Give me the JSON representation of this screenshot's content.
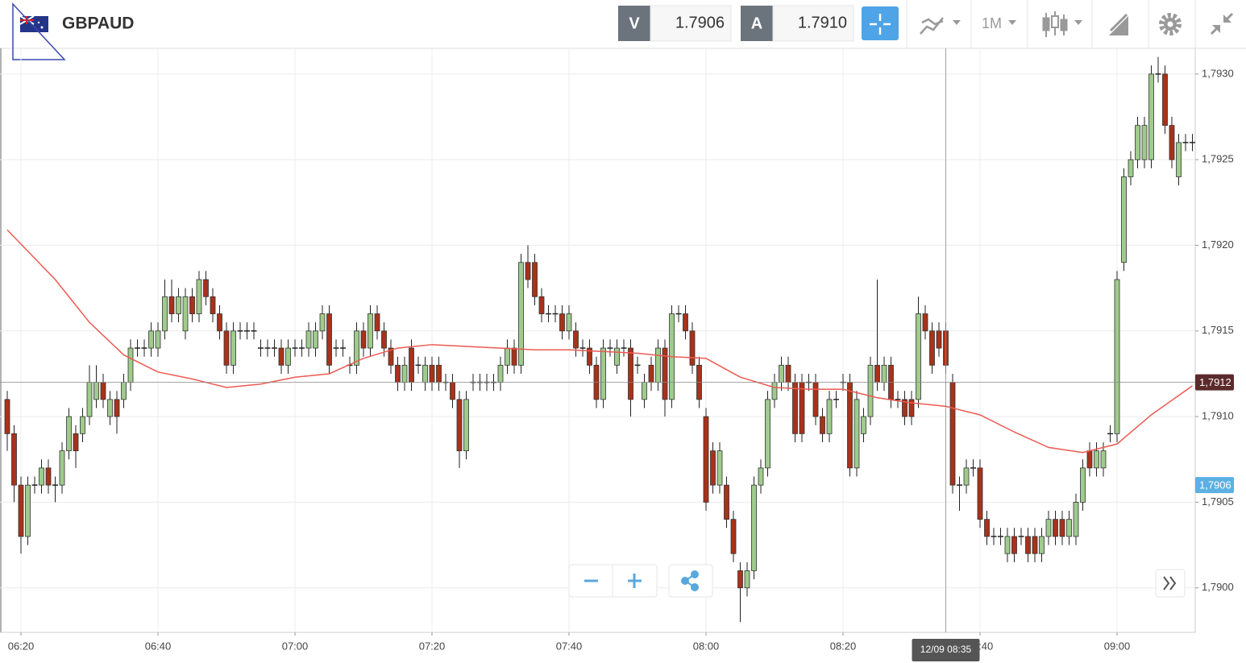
{
  "header": {
    "symbol": "GBPAUD",
    "bid_label": "V",
    "bid": "1.7906",
    "ask_label": "A",
    "ask": "1.7910",
    "timeframe": "1M"
  },
  "chart_data": {
    "type": "candlestick",
    "x": [
      "06:18",
      "06:19",
      "06:20",
      "06:21",
      "06:22",
      "06:23",
      "06:24",
      "06:25",
      "06:26",
      "06:27",
      "06:28",
      "06:29",
      "06:30",
      "06:31",
      "06:32",
      "06:33",
      "06:34",
      "06:35",
      "06:36",
      "06:37",
      "06:38",
      "06:39",
      "06:40",
      "06:41",
      "06:42",
      "06:43",
      "06:44",
      "06:45",
      "06:46",
      "06:47",
      "06:48",
      "06:49",
      "06:50",
      "06:51",
      "06:52",
      "06:53",
      "06:54",
      "06:55",
      "06:56",
      "06:57",
      "06:58",
      "06:59",
      "07:00",
      "07:01",
      "07:02",
      "07:03",
      "07:04",
      "07:05",
      "07:06",
      "07:07",
      "07:08",
      "07:09",
      "07:10",
      "07:11",
      "07:12",
      "07:13",
      "07:14",
      "07:15",
      "07:16",
      "07:17",
      "07:18",
      "07:19",
      "07:20",
      "07:21",
      "07:22",
      "07:23",
      "07:24",
      "07:25",
      "07:26",
      "07:27",
      "07:28",
      "07:29",
      "07:30",
      "07:31",
      "07:32",
      "07:33",
      "07:34",
      "07:35",
      "07:36",
      "07:37",
      "07:38",
      "07:39",
      "07:40",
      "07:41",
      "07:42",
      "07:43",
      "07:44",
      "07:45",
      "07:46",
      "07:47",
      "07:48",
      "07:49",
      "07:50",
      "07:51",
      "07:52",
      "07:53",
      "07:54",
      "07:55",
      "07:56",
      "07:57",
      "07:58",
      "07:59",
      "08:00",
      "08:01",
      "08:02",
      "08:03",
      "08:04",
      "08:05",
      "08:06",
      "08:07",
      "08:08",
      "08:09",
      "08:10",
      "08:11",
      "08:12",
      "08:13",
      "08:14",
      "08:15",
      "08:16",
      "08:17",
      "08:18",
      "08:19",
      "08:20",
      "08:21",
      "08:22",
      "08:23",
      "08:24",
      "08:25",
      "08:26",
      "08:27",
      "08:28",
      "08:29",
      "08:30",
      "08:31",
      "08:32",
      "08:33",
      "08:34",
      "08:35",
      "08:36",
      "08:37",
      "08:38",
      "08:39",
      "08:40",
      "08:41",
      "08:42",
      "08:43",
      "08:44",
      "08:45",
      "08:46",
      "08:47",
      "08:48",
      "08:49",
      "08:50",
      "08:51",
      "08:52",
      "08:53",
      "08:54",
      "08:55",
      "08:56",
      "08:57",
      "08:58",
      "08:59",
      "09:00",
      "09:01",
      "09:02",
      "09:03",
      "09:04",
      "09:05",
      "09:06",
      "09:07",
      "09:08",
      "09:09",
      "09:10",
      "09:11"
    ],
    "open": [
      1.7911,
      1.7909,
      1.7906,
      1.7903,
      1.7906,
      1.7906,
      1.7907,
      1.7906,
      1.7906,
      1.7908,
      1.7909,
      1.7909,
      1.791,
      1.7911,
      1.7912,
      1.791,
      1.7911,
      1.7911,
      1.7912,
      1.7914,
      1.7914,
      1.7914,
      1.7914,
      1.7915,
      1.7917,
      1.7916,
      1.7915,
      1.7917,
      1.7916,
      1.7918,
      1.7917,
      1.7916,
      1.7915,
      1.7913,
      1.7915,
      1.7915,
      1.7915,
      1.7914,
      1.7914,
      1.7914,
      1.7914,
      1.7913,
      1.7914,
      1.7914,
      1.7914,
      1.7914,
      1.7915,
      1.7916,
      1.7914,
      1.7914,
      1.7913,
      1.7913,
      1.7915,
      1.7914,
      1.7916,
      1.7915,
      1.7914,
      1.7913,
      1.7912,
      1.7914,
      1.7913,
      1.7912,
      1.7913,
      1.7913,
      1.7912,
      1.7912,
      1.7911,
      1.7908,
      1.7912,
      1.7912,
      1.7912,
      1.7912,
      1.7912,
      1.7913,
      1.7914,
      1.7913,
      1.7919,
      1.7919,
      1.7917,
      1.7916,
      1.7916,
      1.7916,
      1.7915,
      1.7915,
      1.7914,
      1.7914,
      1.7913,
      1.7911,
      1.7914,
      1.7913,
      1.7914,
      1.7914,
      1.7913,
      1.7911,
      1.7913,
      1.7912,
      1.7914,
      1.7911,
      1.7916,
      1.7916,
      1.7915,
      1.7913,
      1.791,
      1.7908,
      1.7906,
      1.7906,
      1.7904,
      1.7901,
      1.79,
      1.7901,
      1.7906,
      1.7907,
      1.7911,
      1.7912,
      1.7913,
      1.7912,
      1.7912,
      1.7912,
      1.7912,
      1.791,
      1.7909,
      1.7911,
      1.7912,
      1.7912,
      1.7907,
      1.7909,
      1.791,
      1.7913,
      1.7912,
      1.7913,
      1.7911,
      1.7911,
      1.7911,
      1.7911,
      1.7916,
      1.7915,
      1.7915,
      1.7915,
      1.7912,
      1.7906,
      1.7906,
      1.7907,
      1.7907,
      1.7904,
      1.7903,
      1.7903,
      1.7902,
      1.7903,
      1.7903,
      1.7903,
      1.7903,
      1.7902,
      1.7903,
      1.7904,
      1.7904,
      1.7903,
      1.7903,
      1.7905,
      1.7908,
      1.7907,
      1.7907,
      1.7909,
      1.7909,
      1.7919,
      1.7924,
      1.7925,
      1.7925,
      1.7925,
      1.793,
      1.793,
      1.7927,
      1.7924,
      1.7926,
      1.7926
    ],
    "high": [
      1.79115,
      1.79095,
      1.79065,
      1.79065,
      1.79065,
      1.79075,
      1.79075,
      1.79065,
      1.79085,
      1.79105,
      1.79095,
      1.79105,
      1.7913,
      1.7913,
      1.79125,
      1.79115,
      1.79115,
      1.79125,
      1.79145,
      1.79145,
      1.79145,
      1.79155,
      1.79155,
      1.7918,
      1.7918,
      1.79175,
      1.79175,
      1.79175,
      1.79185,
      1.79185,
      1.79175,
      1.79165,
      1.79155,
      1.79155,
      1.79155,
      1.79155,
      1.79155,
      1.79145,
      1.79145,
      1.79145,
      1.79145,
      1.79145,
      1.79145,
      1.79145,
      1.79155,
      1.79155,
      1.79165,
      1.79165,
      1.79145,
      1.79145,
      1.79135,
      1.79155,
      1.79155,
      1.79165,
      1.79165,
      1.79155,
      1.79145,
      1.79135,
      1.79135,
      1.79145,
      1.79135,
      1.79135,
      1.79135,
      1.79135,
      1.79125,
      1.79125,
      1.79115,
      1.79115,
      1.79125,
      1.79125,
      1.79125,
      1.79125,
      1.79135,
      1.79145,
      1.79145,
      1.79195,
      1.792,
      1.79195,
      1.79175,
      1.79165,
      1.79165,
      1.79165,
      1.79165,
      1.79155,
      1.79145,
      1.79145,
      1.79135,
      1.79145,
      1.79145,
      1.79145,
      1.79145,
      1.79145,
      1.79135,
      1.79125,
      1.79135,
      1.79145,
      1.79145,
      1.79165,
      1.79165,
      1.79165,
      1.79155,
      1.79135,
      1.79105,
      1.79085,
      1.79085,
      1.79065,
      1.79045,
      1.79015,
      1.79015,
      1.79065,
      1.79075,
      1.79115,
      1.79125,
      1.79135,
      1.79135,
      1.79125,
      1.79125,
      1.79125,
      1.79125,
      1.79105,
      1.79115,
      1.79115,
      1.79125,
      1.79125,
      1.79115,
      1.79105,
      1.79135,
      1.7918,
      1.79135,
      1.79135,
      1.79115,
      1.79115,
      1.79115,
      1.7917,
      1.79165,
      1.79155,
      1.79155,
      1.79155,
      1.79125,
      1.79065,
      1.79075,
      1.79075,
      1.79075,
      1.79045,
      1.79035,
      1.79035,
      1.79035,
      1.79035,
      1.79035,
      1.79035,
      1.79035,
      1.79035,
      1.79045,
      1.79045,
      1.79045,
      1.79045,
      1.79055,
      1.79075,
      1.79085,
      1.79085,
      1.79085,
      1.79095,
      1.79185,
      1.79245,
      1.79255,
      1.79275,
      1.79275,
      1.79305,
      1.7931,
      1.79305,
      1.79275,
      1.79265,
      1.79265,
      1.79265
    ],
    "low": [
      1.7908,
      1.7905,
      1.7902,
      1.79025,
      1.79055,
      1.79055,
      1.79055,
      1.7905,
      1.79055,
      1.79075,
      1.7907,
      1.79085,
      1.79095,
      1.79105,
      1.79105,
      1.79095,
      1.7909,
      1.79105,
      1.79115,
      1.79135,
      1.79135,
      1.79135,
      1.79135,
      1.79145,
      1.79155,
      1.79155,
      1.79145,
      1.79155,
      1.79155,
      1.79165,
      1.79155,
      1.79145,
      1.79125,
      1.79125,
      1.79145,
      1.79145,
      1.79145,
      1.79135,
      1.79135,
      1.79135,
      1.79125,
      1.79125,
      1.79135,
      1.79135,
      1.79135,
      1.79135,
      1.79145,
      1.79125,
      1.79135,
      1.79135,
      1.79125,
      1.79125,
      1.79135,
      1.79135,
      1.79145,
      1.79135,
      1.79125,
      1.79115,
      1.79115,
      1.79115,
      1.79125,
      1.79115,
      1.79115,
      1.79115,
      1.79115,
      1.79105,
      1.7907,
      1.79075,
      1.79115,
      1.79115,
      1.79115,
      1.79115,
      1.79115,
      1.79125,
      1.79125,
      1.79125,
      1.79175,
      1.79165,
      1.79155,
      1.79155,
      1.79155,
      1.79145,
      1.79145,
      1.79135,
      1.79135,
      1.79125,
      1.79105,
      1.79105,
      1.79135,
      1.79125,
      1.79135,
      1.791,
      1.79125,
      1.79105,
      1.79115,
      1.79115,
      1.791,
      1.79105,
      1.79155,
      1.79145,
      1.79125,
      1.79105,
      1.79045,
      1.79055,
      1.79055,
      1.79035,
      1.79015,
      1.7898,
      1.78995,
      1.79005,
      1.79055,
      1.79065,
      1.79105,
      1.79115,
      1.79115,
      1.79085,
      1.79085,
      1.79115,
      1.79095,
      1.79085,
      1.79085,
      1.79105,
      1.79115,
      1.79065,
      1.79065,
      1.79085,
      1.79095,
      1.79115,
      1.79115,
      1.79105,
      1.79105,
      1.79095,
      1.79095,
      1.79105,
      1.79145,
      1.79125,
      1.79135,
      1.79125,
      1.79055,
      1.79045,
      1.79055,
      1.79065,
      1.79035,
      1.79025,
      1.79025,
      1.79025,
      1.79015,
      1.79015,
      1.79025,
      1.79015,
      1.79015,
      1.79015,
      1.79025,
      1.79025,
      1.79025,
      1.79025,
      1.79025,
      1.79045,
      1.79065,
      1.79065,
      1.79065,
      1.79085,
      1.79085,
      1.79185,
      1.79235,
      1.79245,
      1.79245,
      1.79245,
      1.79295,
      1.79265,
      1.79245,
      1.79235,
      1.79255,
      1.79255
    ],
    "close": [
      1.7909,
      1.7906,
      1.7903,
      1.7906,
      1.7906,
      1.7907,
      1.7906,
      1.7906,
      1.7908,
      1.791,
      1.7908,
      1.791,
      1.7912,
      1.7912,
      1.7911,
      1.7911,
      1.791,
      1.7912,
      1.7914,
      1.7914,
      1.7914,
      1.7915,
      1.7915,
      1.7917,
      1.7916,
      1.7917,
      1.7917,
      1.7916,
      1.7918,
      1.7917,
      1.7916,
      1.7915,
      1.7913,
      1.7915,
      1.7915,
      1.7915,
      1.7915,
      1.7914,
      1.7914,
      1.7914,
      1.7913,
      1.7914,
      1.7914,
      1.7914,
      1.7915,
      1.7915,
      1.7916,
      1.7913,
      1.7914,
      1.7914,
      1.7913,
      1.7915,
      1.7914,
      1.7916,
      1.7915,
      1.7914,
      1.7913,
      1.7912,
      1.7913,
      1.7912,
      1.7913,
      1.7913,
      1.7912,
      1.7912,
      1.7912,
      1.7911,
      1.7908,
      1.7911,
      1.7912,
      1.7912,
      1.7912,
      1.7912,
      1.7913,
      1.7914,
      1.7913,
      1.7919,
      1.7918,
      1.7917,
      1.7916,
      1.7916,
      1.7916,
      1.7915,
      1.7916,
      1.7914,
      1.7914,
      1.7913,
      1.7911,
      1.7914,
      1.7914,
      1.7914,
      1.7914,
      1.7911,
      1.7913,
      1.7912,
      1.7912,
      1.7914,
      1.7911,
      1.7916,
      1.7916,
      1.7915,
      1.7913,
      1.7911,
      1.7905,
      1.7906,
      1.7908,
      1.7904,
      1.7902,
      1.79,
      1.7901,
      1.7906,
      1.7907,
      1.7911,
      1.7912,
      1.7913,
      1.7912,
      1.7909,
      1.7909,
      1.7912,
      1.791,
      1.7909,
      1.7911,
      1.7911,
      1.7912,
      1.7907,
      1.7911,
      1.791,
      1.7913,
      1.7912,
      1.7913,
      1.7911,
      1.7911,
      1.791,
      1.791,
      1.7916,
      1.7915,
      1.7913,
      1.7914,
      1.7913,
      1.7906,
      1.7906,
      1.7907,
      1.7907,
      1.7904,
      1.7903,
      1.7903,
      1.7903,
      1.7903,
      1.7902,
      1.7903,
      1.7902,
      1.7902,
      1.7903,
      1.7904,
      1.7903,
      1.7903,
      1.7904,
      1.7905,
      1.7907,
      1.7907,
      1.7908,
      1.7908,
      1.7909,
      1.7918,
      1.7924,
      1.7925,
      1.7927,
      1.7927,
      1.793,
      1.793,
      1.7927,
      1.7925,
      1.7926,
      1.7926,
      1.7926
    ],
    "up_color": "#9fcb8c",
    "down_color": "#a8321a",
    "ma": {
      "color": "#ec5a52",
      "x": [
        "06:18",
        "06:25",
        "06:30",
        "06:35",
        "06:40",
        "06:45",
        "06:50",
        "06:55",
        "07:00",
        "07:05",
        "07:10",
        "07:15",
        "07:20",
        "07:25",
        "07:30",
        "07:35",
        "07:40",
        "07:45",
        "07:50",
        "07:55",
        "08:00",
        "08:05",
        "08:10",
        "08:15",
        "08:20",
        "08:25",
        "08:30",
        "08:35",
        "08:40",
        "08:45",
        "08:50",
        "08:55",
        "09:00",
        "09:05",
        "09:11"
      ],
      "values": [
        1.79209,
        1.7918,
        1.79155,
        1.79136,
        1.79126,
        1.79122,
        1.79117,
        1.79119,
        1.79123,
        1.79125,
        1.79134,
        1.7914,
        1.79142,
        1.79141,
        1.7914,
        1.79139,
        1.79139,
        1.79138,
        1.79137,
        1.79135,
        1.79134,
        1.79123,
        1.79117,
        1.79116,
        1.79116,
        1.79111,
        1.79108,
        1.79106,
        1.79101,
        1.79091,
        1.79082,
        1.79079,
        1.79084,
        1.79101,
        1.79118
      ]
    },
    "ylim": [
      1.78974,
      1.79315
    ],
    "yticks": [
      {
        "value": 1.79,
        "label": "1,7900"
      },
      {
        "value": 1.7905,
        "label": "1,7905"
      },
      {
        "value": 1.791,
        "label": "1,7910"
      },
      {
        "value": 1.7915,
        "label": "1,7915"
      },
      {
        "value": 1.792,
        "label": "1,7920"
      },
      {
        "value": 1.7925,
        "label": "1,7925"
      },
      {
        "value": 1.793,
        "label": "1,7930"
      }
    ],
    "xticks": [
      "06:20",
      "06:40",
      "07:00",
      "07:20",
      "07:40",
      "08:00",
      "08:20",
      "08:40",
      "09:00"
    ],
    "grid": true,
    "crosshair": {
      "x": "08:35",
      "x_label": "12/09 08:35",
      "y": {
        "value": 1.7912,
        "label": "1,7912"
      },
      "color": "#5b2b2b"
    },
    "price_marker": {
      "value": 1.7906,
      "label": "1,7906",
      "color": "#5cb0e2"
    }
  }
}
